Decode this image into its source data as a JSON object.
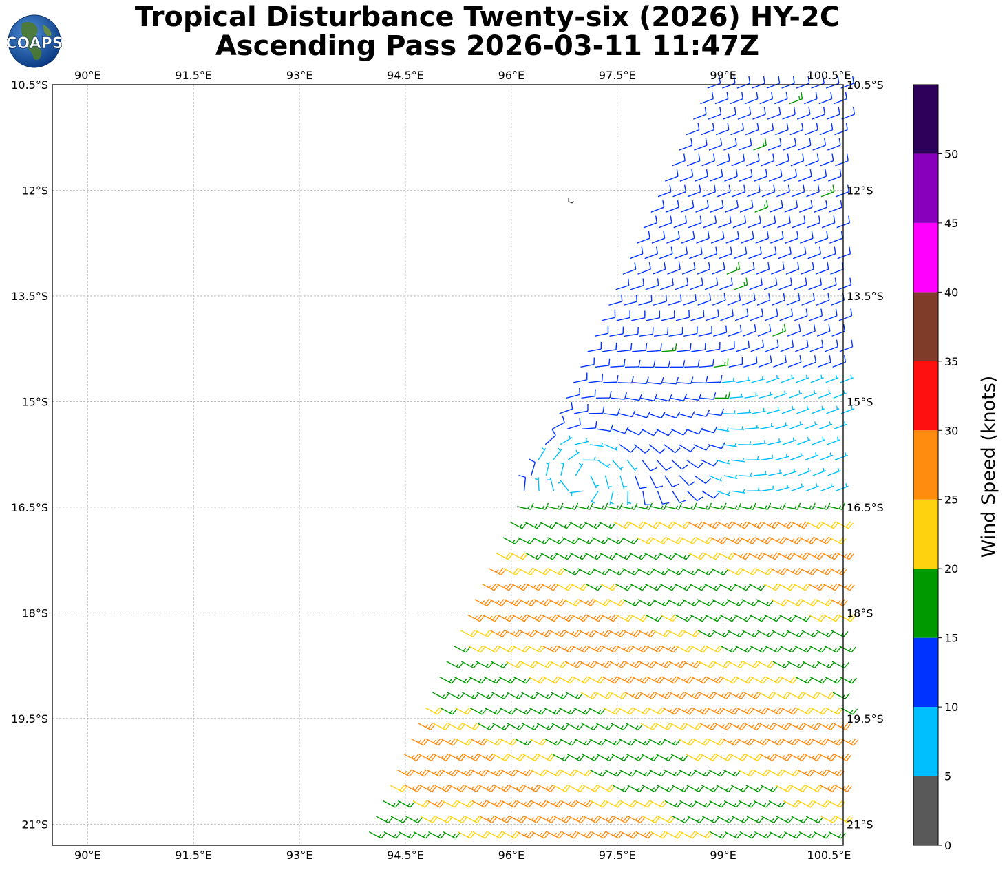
{
  "title": {
    "line1": "Tropical Disturbance Twenty-six (2026) HY-2C",
    "line2": "Ascending Pass 2026-03-11 11:47Z"
  },
  "logo": {
    "text": "COAPS",
    "icon": "globe-logo-icon"
  },
  "map": {
    "lon_range": [
      89.5,
      100.7
    ],
    "lat_range": [
      -21.3,
      -10.5
    ],
    "lon_ticks": [
      {
        "value": 90,
        "label": "90°E"
      },
      {
        "value": 91.5,
        "label": "91.5°E"
      },
      {
        "value": 93,
        "label": "93°E"
      },
      {
        "value": 94.5,
        "label": "94.5°E"
      },
      {
        "value": 96,
        "label": "96°E"
      },
      {
        "value": 97.5,
        "label": "97.5°E"
      },
      {
        "value": 99,
        "label": "99°E"
      },
      {
        "value": 100.5,
        "label": "100.5°E"
      }
    ],
    "lat_ticks": [
      {
        "value": -10.5,
        "label": "10.5°S"
      },
      {
        "value": -12,
        "label": "12°S"
      },
      {
        "value": -13.5,
        "label": "13.5°S"
      },
      {
        "value": -15,
        "label": "15°S"
      },
      {
        "value": -16.5,
        "label": "16.5°S"
      },
      {
        "value": -18,
        "label": "18°S"
      },
      {
        "value": -19.5,
        "label": "19.5°S"
      },
      {
        "value": -21,
        "label": "21°S"
      }
    ],
    "grid": true,
    "swath_west_edge": [
      [
        98.7,
        -10.5
      ],
      [
        93.8,
        -21.3
      ]
    ],
    "swath_east_edge": [
      [
        100.7,
        -10.5
      ],
      [
        100.7,
        -21.3
      ]
    ],
    "circulation_center": [
      97.0,
      -16.1
    ],
    "island": [
      96.85,
      -12.15
    ]
  },
  "colorbar": {
    "label": "Wind Speed (knots)",
    "ticks": [
      "0",
      "5",
      "10",
      "15",
      "20",
      "25",
      "30",
      "35",
      "40",
      "45",
      "50"
    ],
    "bins": [
      {
        "min": 0,
        "max": 5,
        "color": "#595959"
      },
      {
        "min": 5,
        "max": 10,
        "color": "#00bfff"
      },
      {
        "min": 10,
        "max": 15,
        "color": "#0033ff"
      },
      {
        "min": 15,
        "max": 20,
        "color": "#009900"
      },
      {
        "min": 20,
        "max": 25,
        "color": "#ffd20f"
      },
      {
        "min": 25,
        "max": 30,
        "color": "#ff8c0f"
      },
      {
        "min": 30,
        "max": 35,
        "color": "#ff1010"
      },
      {
        "min": 35,
        "max": 40,
        "color": "#7f3c28"
      },
      {
        "min": 40,
        "max": 45,
        "color": "#ff00ff"
      },
      {
        "min": 45,
        "max": 50,
        "color": "#8800bb"
      },
      {
        "min": 50,
        "max": 55,
        "color": "#2e0059"
      }
    ]
  }
}
